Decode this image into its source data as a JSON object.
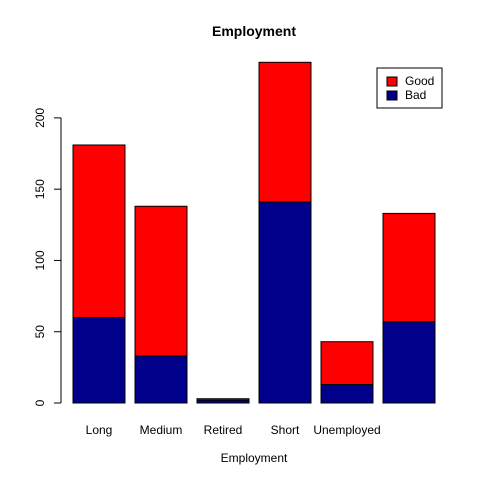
{
  "chart_data": {
    "type": "bar",
    "stacked": true,
    "title": "Employment",
    "xlabel": "Employment",
    "ylabel": "",
    "categories": [
      "Long",
      "Medium",
      "Retired",
      "Short",
      "Unemployed",
      ""
    ],
    "series": [
      {
        "name": "Bad",
        "color": "#00008B",
        "values": [
          60,
          33,
          2,
          141,
          13,
          57
        ]
      },
      {
        "name": "Good",
        "color": "#FF0000",
        "values": [
          121,
          105,
          1,
          98,
          30,
          76
        ]
      }
    ],
    "ylim": [
      0,
      240
    ],
    "yticks": [
      0,
      50,
      100,
      150,
      200
    ],
    "grid": false,
    "legend": {
      "position": "top-right",
      "entries": [
        {
          "name": "Good",
          "color": "#FF0000"
        },
        {
          "name": "Bad",
          "color": "#00008B"
        }
      ]
    }
  }
}
